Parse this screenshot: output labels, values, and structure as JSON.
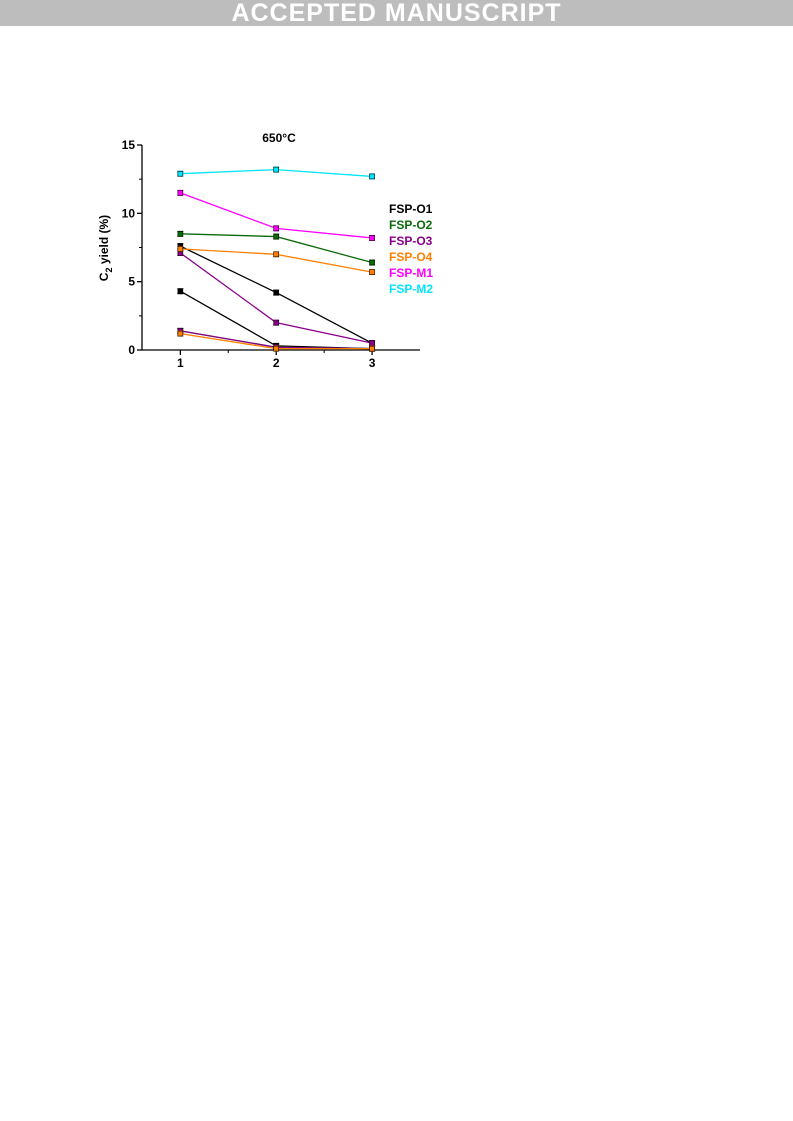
{
  "banner": {
    "text": "ACCEPTED MANUSCRIPT"
  },
  "chart_data": {
    "type": "line",
    "title": "650°C",
    "xlabel": "",
    "ylabel": "C2 yield (%)",
    "ylabel_main": "C",
    "ylabel_sub": "2",
    "ylabel_rest": " yield (%)",
    "x": [
      1,
      2,
      3
    ],
    "x_ticks": [
      "1",
      "2",
      "3"
    ],
    "y_ticks": [
      "0",
      "5",
      "10",
      "15"
    ],
    "y_tick_values": [
      0,
      5,
      10,
      15
    ],
    "xlim": [
      0.6,
      3.5
    ],
    "ylim": [
      0,
      15
    ],
    "legend_position": "right",
    "series": [
      {
        "name": "FSP-O1",
        "color": "#000000",
        "values": [
          7.6,
          4.2,
          0.5
        ]
      },
      {
        "name": "FSP-O1",
        "color": "#000000",
        "values": [
          4.3,
          0.3,
          0.1
        ]
      },
      {
        "name": "FSP-O2",
        "color": "#0a6b0a",
        "values": [
          8.5,
          8.3,
          6.4
        ]
      },
      {
        "name": "FSP-O2",
        "color": "#0a6b0a",
        "values": [
          1.4,
          0.2,
          0.1
        ]
      },
      {
        "name": "FSP-O3",
        "color": "#8b008b",
        "values": [
          7.1,
          2.0,
          0.5
        ]
      },
      {
        "name": "FSP-O3",
        "color": "#8b008b",
        "values": [
          1.4,
          0.2,
          0.1
        ]
      },
      {
        "name": "FSP-O4",
        "color": "#ff8000",
        "values": [
          7.4,
          7.0,
          5.7
        ]
      },
      {
        "name": "FSP-O4",
        "color": "#ff8000",
        "values": [
          1.2,
          0.1,
          0.1
        ]
      },
      {
        "name": "FSP-M1",
        "color": "#ff00ff",
        "values": [
          11.5,
          8.9,
          8.2
        ]
      },
      {
        "name": "FSP-M2",
        "color": "#00e5ff",
        "values": [
          12.9,
          13.2,
          12.7
        ]
      }
    ],
    "legend": [
      {
        "name": "FSP-O1",
        "color": "#000000"
      },
      {
        "name": "FSP-O2",
        "color": "#0a6b0a"
      },
      {
        "name": "FSP-O3",
        "color": "#8b008b"
      },
      {
        "name": "FSP-O4",
        "color": "#ff8000"
      },
      {
        "name": "FSP-M1",
        "color": "#ff00ff"
      },
      {
        "name": "FSP-M2",
        "color": "#00e5ff"
      }
    ]
  }
}
